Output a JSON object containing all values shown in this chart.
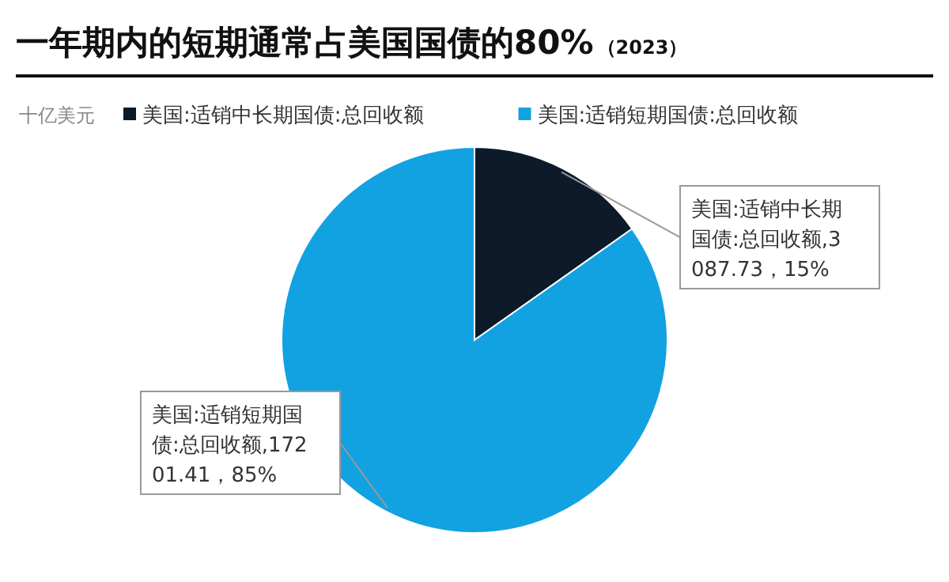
{
  "chart_data": {
    "type": "pie",
    "title": "一年期内的短期通常占美国国债的80%",
    "subtitle": "（2023）",
    "ylabel": "十亿美元",
    "categories": [
      "美国:适销中长期国债:总回收额",
      "美国:适销短期国债:总回收额"
    ],
    "values": [
      3087.73,
      17201.41
    ],
    "value_labels": [
      "美国:适销中长期国债:总回收额,3087.73，15%",
      "美国:适销短期国债:总回收额,17201.41，85%"
    ],
    "colors": [
      "#0c1a2a",
      "#12a2e2"
    ],
    "legend": "top left"
  }
}
